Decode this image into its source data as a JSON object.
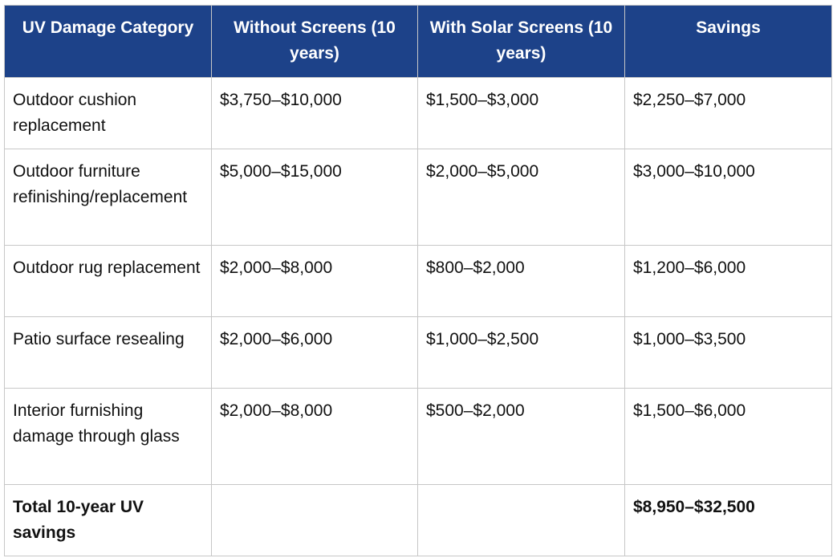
{
  "table": {
    "headers": [
      "UV Damage Category",
      "Without Screens (10 years)",
      "With Solar Screens (10 years)",
      "Savings"
    ],
    "rows": [
      [
        "Outdoor cushion replacement",
        "$3,750–$10,000",
        "$1,500–$3,000",
        "$2,250–$7,000"
      ],
      [
        "Outdoor furniture refinishing/replacement",
        "$5,000–$15,000",
        "$2,000–$5,000",
        "$3,000–$10,000"
      ],
      [
        "Outdoor rug replacement",
        "$2,000–$8,000",
        "$800–$2,000",
        "$1,200–$6,000"
      ],
      [
        "Patio surface resealing",
        "$2,000–$6,000",
        "$1,000–$2,500",
        "$1,000–$3,500"
      ],
      [
        "Interior furnishing damage through glass",
        "$2,000–$8,000",
        "$500–$2,000",
        "$1,500–$6,000"
      ]
    ],
    "total": [
      "Total 10-year UV savings",
      "",
      "",
      "$8,950–$32,500"
    ],
    "colors": {
      "header_bg": "#1d4289",
      "header_text": "#ffffff",
      "border": "#c7c7c7"
    }
  }
}
